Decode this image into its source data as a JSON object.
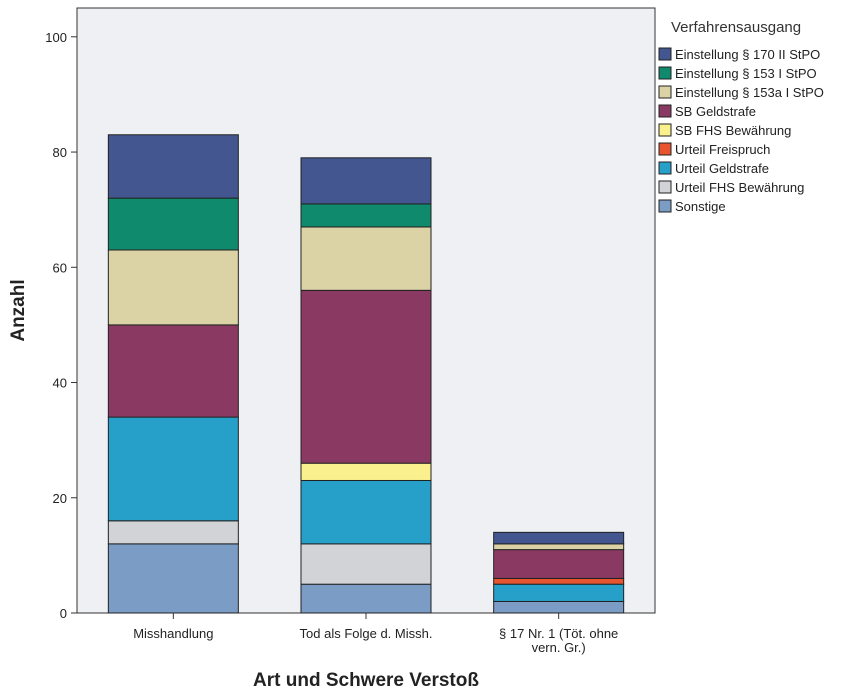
{
  "chart_data": {
    "type": "bar",
    "stacked": true,
    "xlabel": "Art und Schwere Verstoß",
    "ylabel": "Anzahl",
    "ylim": [
      0,
      105
    ],
    "yticks": [
      0,
      20,
      40,
      60,
      80,
      100
    ],
    "categories": [
      [
        "Misshandlung"
      ],
      [
        "Tod als Folge d. Missh."
      ],
      [
        "§ 17 Nr. 1 (Töt. ohne",
        "vern. Gr.)"
      ]
    ],
    "legend_title": "Verfahrensausgang",
    "legend_position": "right",
    "series": [
      {
        "name": "Sonstige",
        "color": "#7b9cc4",
        "values": [
          12,
          5,
          2
        ]
      },
      {
        "name": "Urteil FHS Bewährung",
        "color": "#d2d3d6",
        "values": [
          4,
          7,
          0
        ]
      },
      {
        "name": "Urteil Geldstrafe",
        "color": "#27a0c9",
        "values": [
          18,
          11,
          3
        ]
      },
      {
        "name": "Urteil Freispruch",
        "color": "#e8542e",
        "values": [
          0,
          0,
          1
        ]
      },
      {
        "name": "SB FHS Bewährung",
        "color": "#faf18e",
        "values": [
          0,
          3,
          0
        ]
      },
      {
        "name": "SB Geldstrafe",
        "color": "#8a3a62",
        "values": [
          16,
          30,
          5
        ]
      },
      {
        "name": "Einstellung § 153a I StPO",
        "color": "#dbd2a6",
        "values": [
          13,
          11,
          1
        ]
      },
      {
        "name": "Einstellung § 153 I StPO",
        "color": "#108a6c",
        "values": [
          9,
          4,
          0
        ]
      },
      {
        "name": "Einstellung § 170 II StPO",
        "color": "#43568f",
        "values": [
          11,
          8,
          2
        ]
      }
    ],
    "colors": {
      "plot_background": "#eef0f4",
      "border": "#333333"
    }
  }
}
